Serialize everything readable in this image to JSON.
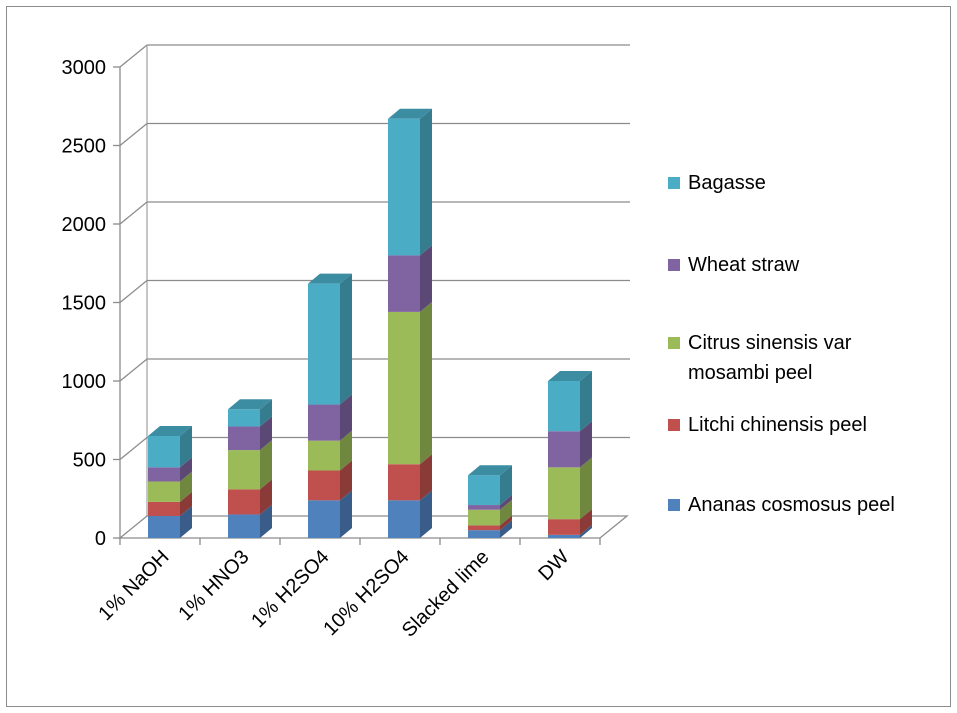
{
  "chart_data": {
    "type": "bar",
    "stacked": true,
    "three_d": true,
    "categories": [
      "1% NaOH",
      "1% HNO3",
      "1% H2SO4",
      "10% H2SO4",
      "Slacked lime",
      "DW"
    ],
    "series": [
      {
        "name": "Ananas cosmosus peel",
        "color": "#4f81bd",
        "values": [
          140,
          150,
          240,
          240,
          50,
          20
        ]
      },
      {
        "name": "Litchi chinensis peel",
        "color": "#c0504d",
        "values": [
          90,
          160,
          190,
          230,
          30,
          100
        ]
      },
      {
        "name": "Citrus sinensis var mosambi peel",
        "color": "#9bbb59",
        "values": [
          130,
          250,
          190,
          970,
          100,
          330
        ]
      },
      {
        "name": "Wheat straw",
        "color": "#8064a2",
        "values": [
          90,
          150,
          230,
          360,
          30,
          230
        ]
      },
      {
        "name": "Bagasse",
        "color": "#4bacc6",
        "values": [
          200,
          110,
          770,
          870,
          190,
          320
        ]
      }
    ],
    "yticks": [
      0,
      500,
      1000,
      1500,
      2000,
      2500,
      3000
    ],
    "ylim": [
      0,
      3000
    ],
    "grid": true,
    "legend_position": "right",
    "title": "",
    "xlabel": "",
    "ylabel": ""
  }
}
